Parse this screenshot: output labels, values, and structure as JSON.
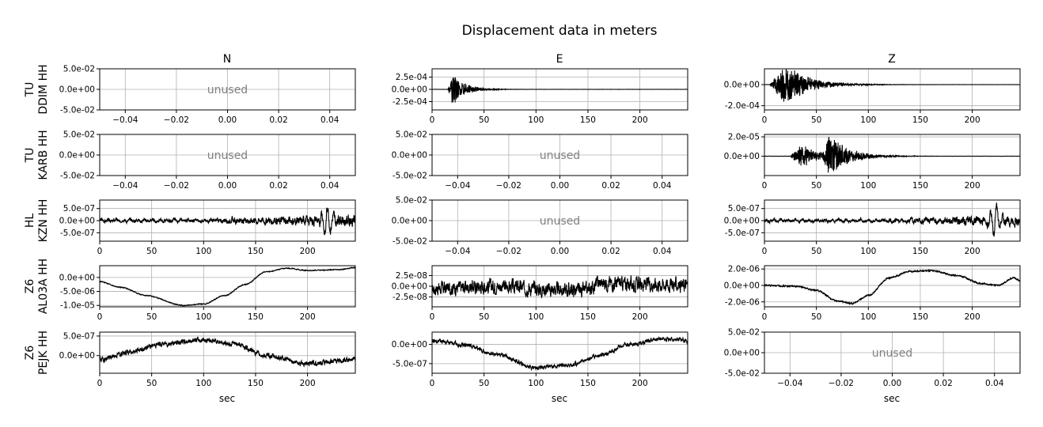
{
  "figure": {
    "title": "Displacement data in meters",
    "columns": [
      "N",
      "E",
      "Z"
    ],
    "xlabel": "sec",
    "unused_label": "unused"
  },
  "stations": [
    {
      "network": "TU",
      "label": "DDIM HH"
    },
    {
      "network": "TU",
      "label": "KARB HH"
    },
    {
      "network": "HL",
      "label": "KZN HH"
    },
    {
      "network": "Z6",
      "label": "AL03A HH"
    },
    {
      "network": "Z6",
      "label": "PEJK HH"
    }
  ],
  "chart_data": [
    {
      "type": "line",
      "row": 0,
      "col": 0,
      "unused": true,
      "xlim": [
        -0.05,
        0.05
      ],
      "ylim": [
        -0.05,
        0.05
      ],
      "xticks": [
        -0.04,
        -0.02,
        0.0,
        0.02,
        0.04
      ],
      "xtick_labels": [
        "−0.04",
        "−0.02",
        "0.00",
        "0.02",
        "0.04"
      ],
      "yticks": [
        0.05,
        0.0,
        -0.05
      ],
      "ytick_labels": [
        "5.0e-02",
        "0.0e+00",
        "-5.0e-02"
      ]
    },
    {
      "type": "line",
      "row": 0,
      "col": 1,
      "unused": false,
      "xlim": [
        0,
        246
      ],
      "ylim": [
        -0.00042,
        0.00042
      ],
      "xticks": [
        0,
        50,
        100,
        150,
        200
      ],
      "xtick_labels": [
        "0",
        "50",
        "100",
        "150",
        "200"
      ],
      "yticks": [
        0.00025,
        0.0,
        -0.00025
      ],
      "ytick_labels": [
        "2.5e-04",
        "0.0e+00",
        "-2.5e-04"
      ],
      "signal": {
        "kind": "burst",
        "onset": 15,
        "peak": 20,
        "amplitude": 0.00036,
        "decay": 12,
        "noise": 1.5e-06,
        "seed": 11
      }
    },
    {
      "type": "line",
      "row": 0,
      "col": 2,
      "unused": false,
      "xlim": [
        0,
        246
      ],
      "ylim": [
        -0.00024,
        0.00015
      ],
      "xticks": [
        0,
        50,
        100,
        150,
        200
      ],
      "xtick_labels": [
        "0",
        "50",
        "100",
        "150",
        "200"
      ],
      "yticks": [
        0.0,
        -0.0002
      ],
      "ytick_labels": [
        "0.0e+00",
        "-2.0e-04"
      ],
      "signal": {
        "kind": "burst",
        "onset": 5,
        "peak": 20,
        "amplitude": 0.00022,
        "decay": 22,
        "noise": 1e-06,
        "seed": 12
      }
    },
    {
      "type": "line",
      "row": 1,
      "col": 0,
      "unused": true,
      "xlim": [
        -0.05,
        0.05
      ],
      "ylim": [
        -0.05,
        0.05
      ],
      "xticks": [
        -0.04,
        -0.02,
        0.0,
        0.02,
        0.04
      ],
      "xtick_labels": [
        "−0.04",
        "−0.02",
        "0.00",
        "0.02",
        "0.04"
      ],
      "yticks": [
        0.05,
        0.0,
        -0.05
      ],
      "ytick_labels": [
        "5.0e-02",
        "0.0e+00",
        "-5.0e-02"
      ]
    },
    {
      "type": "line",
      "row": 1,
      "col": 1,
      "unused": true,
      "xlim": [
        -0.05,
        0.05
      ],
      "ylim": [
        -0.05,
        0.05
      ],
      "xticks": [
        -0.04,
        -0.02,
        0.0,
        0.02,
        0.04
      ],
      "xtick_labels": [
        "−0.04",
        "−0.02",
        "0.00",
        "0.02",
        "0.04"
      ],
      "yticks": [
        0.05,
        0.0,
        -0.05
      ],
      "ytick_labels": [
        "5.0e-02",
        "0.0e+00",
        "-5.0e-02"
      ]
    },
    {
      "type": "line",
      "row": 1,
      "col": 2,
      "unused": false,
      "xlim": [
        0,
        246
      ],
      "ylim": [
        -2e-05,
        2.25e-05
      ],
      "xticks": [
        0,
        50,
        100,
        150,
        200
      ],
      "xtick_labels": [
        "0",
        "50",
        "100",
        "150",
        "200"
      ],
      "yticks": [
        2e-05,
        0.0
      ],
      "ytick_labels": [
        "2.0e-05",
        "0.0e+00"
      ],
      "signal": {
        "kind": "double_burst",
        "onset": 25,
        "peak": 35,
        "amplitude": 1.4e-05,
        "peak2": 62,
        "amplitude2": 2.2e-05,
        "decay": 18,
        "noise": 2e-07,
        "seed": 13
      }
    },
    {
      "type": "line",
      "row": 2,
      "col": 0,
      "unused": false,
      "xlim": [
        0,
        246
      ],
      "ylim": [
        -8.5e-07,
        8.5e-07
      ],
      "xticks": [
        0,
        50,
        100,
        150,
        200
      ],
      "xtick_labels": [
        "0",
        "50",
        "100",
        "150",
        "200"
      ],
      "yticks": [
        5e-07,
        0.0,
        -5e-07
      ],
      "ytick_labels": [
        "5.0e-07",
        "0.0e+00",
        "-5.0e-07"
      ],
      "signal": {
        "kind": "growing_noise",
        "amplitude": 1.2e-07,
        "late_peak": 218,
        "late_amplitude": 7.5e-07,
        "seed": 14
      }
    },
    {
      "type": "line",
      "row": 2,
      "col": 1,
      "unused": true,
      "xlim": [
        -0.05,
        0.05
      ],
      "ylim": [
        -0.05,
        0.05
      ],
      "xticks": [
        -0.04,
        -0.02,
        0.0,
        0.02,
        0.04
      ],
      "xtick_labels": [
        "−0.04",
        "−0.02",
        "0.00",
        "0.02",
        "0.04"
      ],
      "yticks": [
        0.05,
        0.0,
        -0.05
      ],
      "ytick_labels": [
        "5.0e-02",
        "0.0e+00",
        "-5.0e-02"
      ]
    },
    {
      "type": "line",
      "row": 2,
      "col": 2,
      "unused": false,
      "xlim": [
        0,
        246
      ],
      "ylim": [
        -8.5e-07,
        8.5e-07
      ],
      "xticks": [
        0,
        50,
        100,
        150,
        200
      ],
      "xtick_labels": [
        "0",
        "50",
        "100",
        "150",
        "200"
      ],
      "yticks": [
        5e-07,
        0.0,
        -5e-07
      ],
      "ytick_labels": [
        "5.0e-07",
        "0.0e+00",
        "-5.0e-07"
      ],
      "signal": {
        "kind": "growing_noise",
        "amplitude": 1e-07,
        "late_peak": 222,
        "late_amplitude": 8e-07,
        "seed": 15
      }
    },
    {
      "type": "line",
      "row": 3,
      "col": 0,
      "unused": false,
      "xlim": [
        0,
        246
      ],
      "ylim": [
        -1.05e-05,
        4.2e-06
      ],
      "xticks": [
        0,
        50,
        100,
        150,
        200
      ],
      "xtick_labels": [
        "0",
        "50",
        "100",
        "150",
        "200"
      ],
      "yticks": [
        0.0,
        -5e-06,
        -1e-05
      ],
      "ytick_labels": [
        "0.0e+00",
        "-5.0e-06",
        "-1.0e-05"
      ],
      "signal": {
        "kind": "curve",
        "points": [
          [
            0,
            -1.5e-06
          ],
          [
            20,
            -3.5e-06
          ],
          [
            45,
            -6.5e-06
          ],
          [
            80,
            -1e-05
          ],
          [
            100,
            -9.5e-06
          ],
          [
            120,
            -6.5e-06
          ],
          [
            140,
            -2.5e-06
          ],
          [
            160,
            2e-06
          ],
          [
            180,
            3.3e-06
          ],
          [
            200,
            2.5e-06
          ],
          [
            230,
            2.8e-06
          ],
          [
            246,
            3.5e-06
          ]
        ],
        "noise": 1.5e-07,
        "seed": 16
      }
    },
    {
      "type": "line",
      "row": 3,
      "col": 1,
      "unused": false,
      "xlim": [
        0,
        246
      ],
      "ylim": [
        -4.8e-08,
        4.8e-08
      ],
      "xticks": [
        0,
        50,
        100,
        150,
        200
      ],
      "xtick_labels": [
        "0",
        "50",
        "100",
        "150",
        "200"
      ],
      "yticks": [
        2.5e-08,
        0.0,
        -2.5e-08
      ],
      "ytick_labels": [
        "2.5e-08",
        "0.0e+00",
        "-2.5e-08"
      ],
      "signal": {
        "kind": "curve",
        "points": [
          [
            0,
            -5e-09
          ],
          [
            60,
            0.0
          ],
          [
            120,
            -8e-09
          ],
          [
            150,
            -1e-08
          ],
          [
            160,
            8e-09
          ],
          [
            200,
            5e-09
          ],
          [
            246,
            3e-09
          ]
        ],
        "noise": 1.5e-08,
        "seed": 17
      }
    },
    {
      "type": "line",
      "row": 3,
      "col": 2,
      "unused": false,
      "xlim": [
        0,
        246
      ],
      "ylim": [
        -2.6e-06,
        2.4e-06
      ],
      "xticks": [
        0,
        50,
        100,
        150,
        200
      ],
      "xtick_labels": [
        "0",
        "50",
        "100",
        "150",
        "200"
      ],
      "yticks": [
        2e-06,
        0.0,
        -2e-06
      ],
      "ytick_labels": [
        "2.0e-06",
        "0.0e+00",
        "-2.0e-06"
      ],
      "signal": {
        "kind": "curve",
        "points": [
          [
            0,
            0.0
          ],
          [
            30,
            -1e-07
          ],
          [
            50,
            -6e-07
          ],
          [
            70,
            -1.9e-06
          ],
          [
            85,
            -2.2e-06
          ],
          [
            100,
            -1.2e-06
          ],
          [
            120,
            9e-07
          ],
          [
            140,
            1.7e-06
          ],
          [
            160,
            1.8e-06
          ],
          [
            185,
            1.2e-06
          ],
          [
            210,
            2e-07
          ],
          [
            225,
            0.0
          ],
          [
            240,
            9e-07
          ],
          [
            246,
            6e-07
          ]
        ],
        "noise": 8e-08,
        "seed": 18
      }
    },
    {
      "type": "line",
      "row": 4,
      "col": 0,
      "unused": false,
      "xlim": [
        0,
        246
      ],
      "ylim": [
        -4.5e-07,
        6e-07
      ],
      "xticks": [
        0,
        50,
        100,
        150,
        200
      ],
      "xtick_labels": [
        "0",
        "50",
        "100",
        "150",
        "200"
      ],
      "yticks": [
        5e-07,
        0.0
      ],
      "ytick_labels": [
        "5.0e-07",
        "0.0e+00"
      ],
      "signal": {
        "kind": "curve",
        "points": [
          [
            0,
            -1e-07
          ],
          [
            30,
            1e-07
          ],
          [
            60,
            3e-07
          ],
          [
            100,
            4e-07
          ],
          [
            130,
            3e-07
          ],
          [
            160,
            0.0
          ],
          [
            200,
            -2e-07
          ],
          [
            246,
            -1e-07
          ]
        ],
        "noise": 6e-08,
        "seed": 19
      }
    },
    {
      "type": "line",
      "row": 4,
      "col": 1,
      "unused": false,
      "xlim": [
        0,
        246
      ],
      "ylim": [
        -7.5e-07,
        3.2e-07
      ],
      "xticks": [
        0,
        50,
        100,
        150,
        200
      ],
      "xtick_labels": [
        "0",
        "50",
        "100",
        "150",
        "200"
      ],
      "yticks": [
        0.0,
        -5e-07
      ],
      "ytick_labels": [
        "0.0e+00",
        "-5.0e-07"
      ],
      "signal": {
        "kind": "curve",
        "points": [
          [
            0,
            1e-07
          ],
          [
            30,
            0.0
          ],
          [
            60,
            -2.5e-07
          ],
          [
            100,
            -6e-07
          ],
          [
            130,
            -5.5e-07
          ],
          [
            160,
            -3e-07
          ],
          [
            190,
            0.0
          ],
          [
            220,
            1.5e-07
          ],
          [
            246,
            1e-07
          ]
        ],
        "noise": 5e-08,
        "seed": 20
      }
    },
    {
      "type": "line",
      "row": 4,
      "col": 2,
      "unused": true,
      "xlim": [
        -0.05,
        0.05
      ],
      "ylim": [
        -0.05,
        0.05
      ],
      "xticks": [
        -0.04,
        -0.02,
        0.0,
        0.02,
        0.04
      ],
      "xtick_labels": [
        "−0.04",
        "−0.02",
        "0.00",
        "0.02",
        "0.04"
      ],
      "yticks": [
        0.05,
        0.0,
        -0.05
      ],
      "ytick_labels": [
        "5.0e-02",
        "0.0e+00",
        "-5.0e-02"
      ]
    }
  ]
}
